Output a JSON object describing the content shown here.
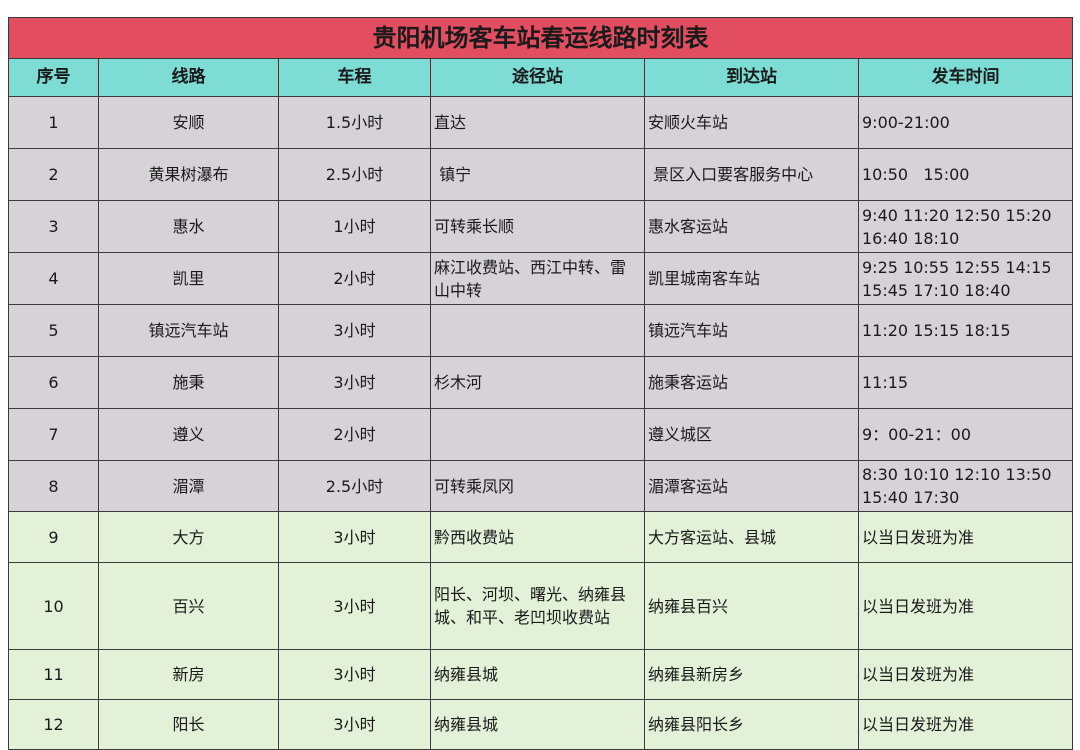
{
  "title": "贵阳机场客车站春运线路时刻表",
  "headers": [
    "序号",
    "线路",
    "车程",
    "途径站",
    "到达站",
    "发车时间"
  ],
  "rows": [
    [
      "1",
      "安顺",
      "1.5小时",
      "直达",
      "安顺火车站",
      "9:00-21:00"
    ],
    [
      "2",
      "黄果树瀑布",
      "2.5小时",
      " 镇宁",
      " 景区入口要客服务中心",
      "10:50   15:00"
    ],
    [
      "3",
      "惠水",
      "1小时",
      "可转乘长顺",
      "惠水客运站",
      "9:40 11:20 12:50 15:20 16:40 18:10"
    ],
    [
      "4",
      "凯里",
      "2小时",
      "麻江收费站、西江中转、雷山中转",
      "凯里城南客车站",
      "9:25 10:55 12:55 14:15 15:45 17:10 18:40"
    ],
    [
      "5",
      "镇远汽车站",
      "3小时",
      "",
      "镇远汽车站",
      "11:20 15:15 18:15"
    ],
    [
      "6",
      "施秉",
      "3小时",
      "杉木河",
      "施秉客运站",
      "11:15"
    ],
    [
      "7",
      "遵义",
      "2小时",
      "",
      "遵义城区",
      "9：00-21：00"
    ],
    [
      "8",
      "湄潭",
      "2.5小时",
      "可转乘凤冈",
      "湄潭客运站",
      "8:30 10:10 12:10 13:50 15:40 17:30"
    ],
    [
      "9",
      "大方",
      "3小时",
      "黔西收费站",
      "大方客运站、县城",
      "以当日发班为准"
    ],
    [
      "10",
      "百兴",
      "3小时",
      "阳长、河坝、曙光、纳雍县城、和平、老凹坝收费站",
      "纳雍县百兴",
      "以当日发班为准"
    ],
    [
      "11",
      "新房",
      "3小时",
      "纳雍县城",
      "纳雍县新房乡",
      "以当日发班为准"
    ],
    [
      "12",
      "阳长",
      "3小时",
      "纳雍县城",
      "纳雍县阳长乡",
      "以当日发班为准"
    ]
  ],
  "colors": {
    "title_bg": "#e24d5f",
    "header_bg": "#7ddcd3",
    "row_gray": "#d5d3d6",
    "row_green": "#e3f1d8"
  }
}
